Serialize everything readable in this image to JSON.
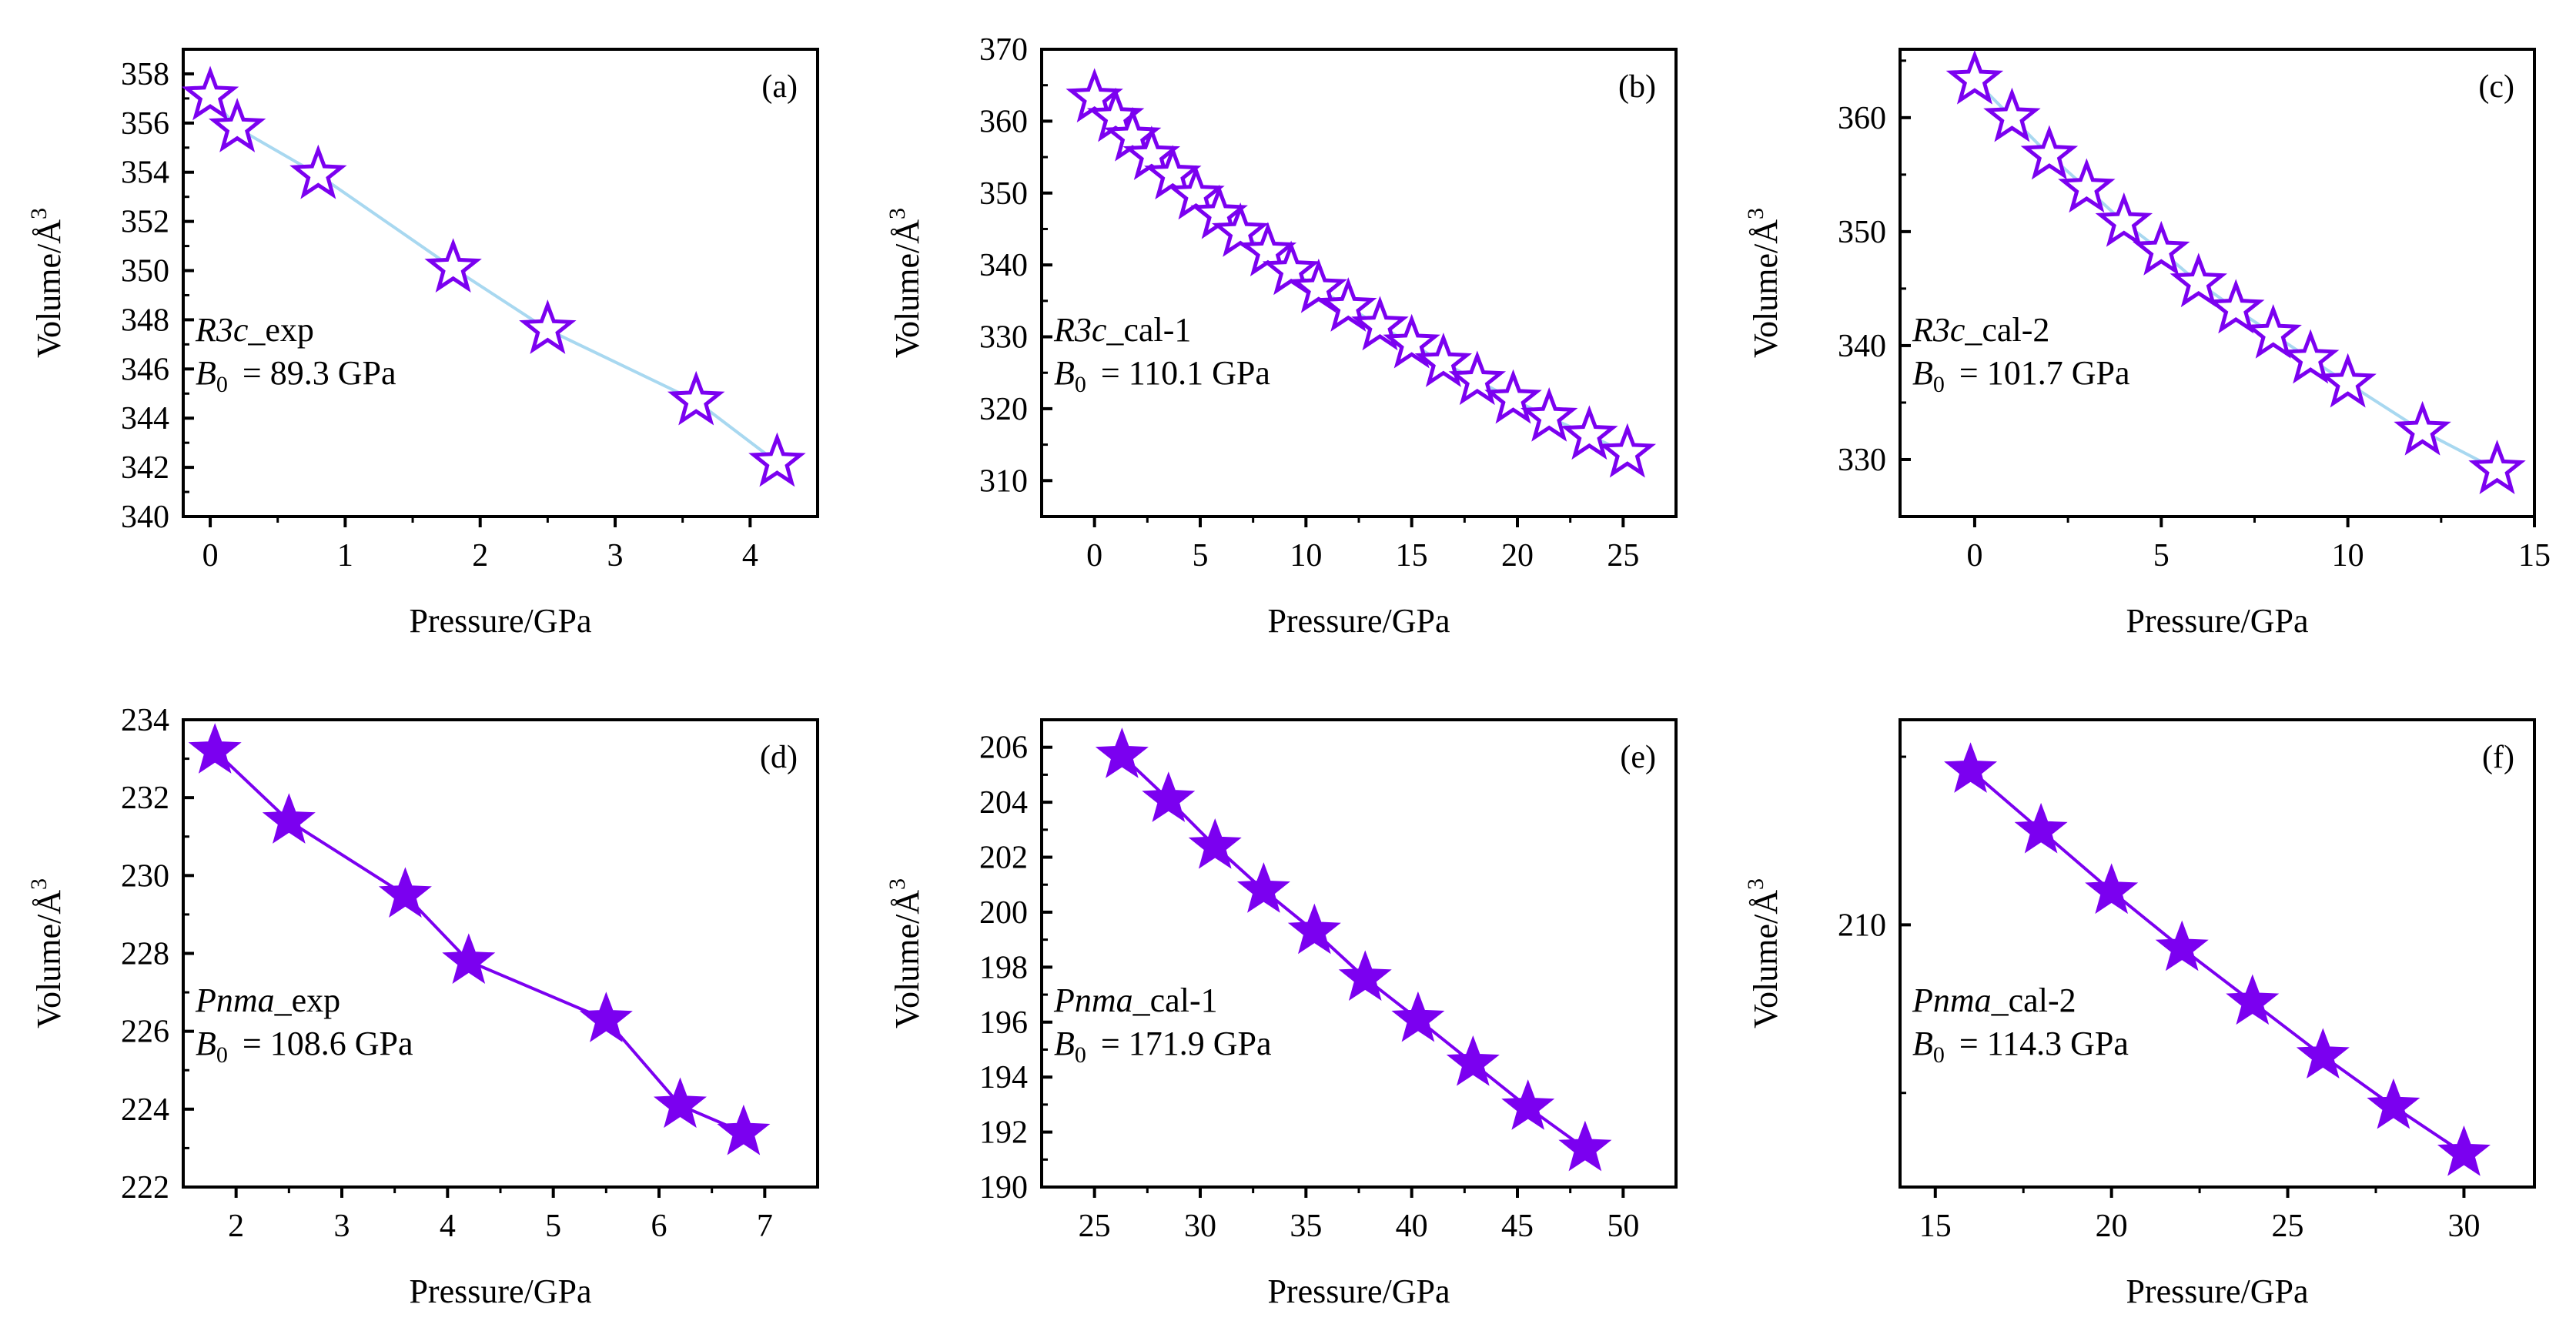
{
  "figure": {
    "xlabel": "Pressure/GPa",
    "ylabel_main": "Volume/Å",
    "ylabel_sup": "3"
  },
  "chart_data": [
    {
      "id": "a",
      "type": "scatter",
      "tag": "(a)",
      "title": "",
      "xlabel": "Pressure/GPa",
      "ylabel": "Volume/Å3",
      "xlim": [
        -0.2,
        4.5
      ],
      "ylim": [
        340,
        359
      ],
      "xticks": [
        0,
        1,
        2,
        3,
        4
      ],
      "xminor": [
        0.5,
        1.5,
        2.5,
        3.5
      ],
      "yticks": [
        340,
        342,
        344,
        346,
        348,
        350,
        352,
        354,
        356,
        358
      ],
      "yminor": [
        341,
        343,
        345,
        347,
        349,
        351,
        353,
        355,
        357
      ],
      "annotation": {
        "phase": "R3c",
        "suffix": "_exp",
        "b0_label": "B",
        "b0_sub": "0",
        "b0_value": "= 89.3 GPa"
      },
      "marker": "open-star",
      "marker_color": "#7B00F0",
      "fit_color": "#A8D8F0",
      "grid": false,
      "legend": "none",
      "series": [
        {
          "name": "R3c_exp",
          "x": [
            0,
            0.2,
            0.8,
            1.8,
            2.5,
            3.6,
            4.2
          ],
          "y": [
            357.1,
            355.8,
            353.9,
            350.1,
            347.6,
            344.7,
            342.2
          ]
        }
      ]
    },
    {
      "id": "b",
      "type": "scatter",
      "tag": "(b)",
      "title": "",
      "xlabel": "Pressure/GPa",
      "ylabel": "Volume/Å3",
      "xlim": [
        -2.5,
        27.5
      ],
      "ylim": [
        305,
        370
      ],
      "xticks": [
        0,
        5,
        10,
        15,
        20,
        25
      ],
      "xminor": [
        2.5,
        7.5,
        12.5,
        17.5,
        22.5
      ],
      "yticks": [
        310,
        320,
        330,
        340,
        350,
        360,
        370
      ],
      "yminor": [
        315,
        325,
        335,
        345,
        355,
        365
      ],
      "annotation": {
        "phase": "R3c",
        "suffix": "_cal-1",
        "b0_label": "B",
        "b0_sub": "0",
        "b0_value": "= 110.1 GPa"
      },
      "marker": "open-star",
      "marker_color": "#7B00F0",
      "fit_color": "#A8D8F0",
      "grid": false,
      "legend": "none",
      "series": [
        {
          "name": "R3c_cal-1",
          "x": [
            0,
            1,
            1.8,
            2.7,
            3.7,
            4.8,
            5.9,
            6.9,
            8.2,
            9.3,
            10.6,
            12,
            13.5,
            15,
            16.5,
            18.1,
            19.8,
            21.5,
            23.4,
            25.2
          ],
          "y": [
            363.2,
            360.5,
            357.8,
            355.2,
            352.5,
            349.7,
            347,
            344.5,
            341.8,
            339.2,
            336.7,
            334.1,
            331.5,
            329,
            326.4,
            323.9,
            321.3,
            318.8,
            316.3,
            313.8
          ]
        }
      ]
    },
    {
      "id": "c",
      "type": "scatter",
      "tag": "(c)",
      "title": "",
      "xlabel": "Pressure/GPa",
      "ylabel": "Volume/Å3",
      "xlim": [
        -2,
        15
      ],
      "ylim": [
        325,
        366
      ],
      "xticks": [
        0,
        5,
        10,
        15
      ],
      "xminor": [
        2.5,
        7.5,
        12.5
      ],
      "yticks": [
        330,
        340,
        350,
        360
      ],
      "yminor": [
        335,
        345,
        355,
        365
      ],
      "annotation": {
        "phase": "R3c",
        "suffix": "_cal-2",
        "b0_label": "B",
        "b0_sub": "0",
        "b0_value": "= 101.7 GPa"
      },
      "marker": "open-star",
      "marker_color": "#7B00F0",
      "fit_color": "#A8D8F0",
      "grid": false,
      "legend": "none",
      "series": [
        {
          "name": "R3c_cal-2",
          "x": [
            0,
            1,
            2,
            3,
            4,
            5,
            6,
            7,
            8,
            9,
            10,
            12,
            14
          ],
          "y": [
            363.3,
            360,
            356.7,
            353.8,
            350.8,
            348.3,
            345.5,
            343.2,
            341,
            338.8,
            336.7,
            332.5,
            329.1
          ]
        }
      ]
    },
    {
      "id": "d",
      "type": "scatter",
      "tag": "(d)",
      "title": "",
      "xlabel": "Pressure/GPa",
      "ylabel": "Volume/Å3",
      "xlim": [
        1.5,
        7.5
      ],
      "ylim": [
        222,
        234
      ],
      "xticks": [
        2,
        3,
        4,
        5,
        6,
        7
      ],
      "xminor": [
        2.5,
        3.5,
        4.5,
        5.5,
        6.5
      ],
      "yticks": [
        222,
        224,
        226,
        228,
        230,
        232,
        234
      ],
      "yminor": [
        223,
        225,
        227,
        229,
        231,
        233
      ],
      "annotation": {
        "phase": "Pnma",
        "suffix": "_exp",
        "b0_label": "B",
        "b0_sub": "0",
        "b0_value": "= 108.6 GPa"
      },
      "marker": "filled-star",
      "marker_color": "#7B00F0",
      "fit_color": "#7B00F0",
      "grid": false,
      "legend": "none",
      "series": [
        {
          "name": "Pnma_exp",
          "x": [
            1.8,
            2.5,
            3.6,
            4.2,
            5.5,
            6.2,
            6.8
          ],
          "y": [
            233.2,
            231.4,
            229.5,
            227.8,
            226.3,
            224.1,
            223.4
          ]
        }
      ]
    },
    {
      "id": "e",
      "type": "scatter",
      "tag": "(e)",
      "title": "",
      "xlabel": "Pressure/GPa",
      "ylabel": "Volume/Å3",
      "xlim": [
        22.5,
        52.5
      ],
      "ylim": [
        190,
        207
      ],
      "xticks": [
        25,
        30,
        35,
        40,
        45,
        50
      ],
      "xminor": [
        27.5,
        32.5,
        37.5,
        42.5,
        47.5
      ],
      "yticks": [
        190,
        192,
        194,
        196,
        198,
        200,
        202,
        204,
        206
      ],
      "yminor": [
        191,
        193,
        195,
        197,
        199,
        201,
        203,
        205
      ],
      "annotation": {
        "phase": "Pnma",
        "suffix": "_cal-1",
        "b0_label": "B",
        "b0_sub": "0",
        "b0_value": "= 171.9 GPa"
      },
      "marker": "filled-star",
      "marker_color": "#7B00F0",
      "fit_color": "#7B00F0",
      "grid": false,
      "legend": "none",
      "series": [
        {
          "name": "Pnma_cal-1",
          "x": [
            26.3,
            28.5,
            30.7,
            33,
            35.4,
            37.8,
            40.3,
            42.9,
            45.5,
            48.2
          ],
          "y": [
            205.7,
            204.1,
            202.4,
            200.8,
            199.3,
            197.6,
            196.1,
            194.5,
            192.9,
            191.4
          ]
        }
      ]
    },
    {
      "id": "f",
      "type": "scatter",
      "tag": "(f)",
      "title": "",
      "xlabel": "Pressure/GPa",
      "ylabel": "Volume/Å3",
      "xlim": [
        14,
        32
      ],
      "ylim": [
        202.2,
        216.1
      ],
      "xticks": [
        15,
        20,
        25,
        30
      ],
      "xminor": [
        17.5,
        22.5,
        27.5
      ],
      "yticks": [
        210
      ],
      "yminor": [
        205,
        215
      ],
      "annotation": {
        "phase": "Pnma",
        "suffix": "_cal-2",
        "b0_label": "B",
        "b0_sub": "0",
        "b0_value": "= 114.3 GPa"
      },
      "marker": "filled-star",
      "marker_color": "#7B00F0",
      "fit_color": "#7B00F0",
      "grid": false,
      "legend": "none",
      "series": [
        {
          "name": "Pnma_cal-2",
          "x": [
            16,
            18,
            20,
            22,
            24,
            26,
            28,
            30
          ],
          "y": [
            214.6,
            212.8,
            211.0,
            209.3,
            207.7,
            206.1,
            204.6,
            203.2
          ]
        }
      ]
    }
  ]
}
